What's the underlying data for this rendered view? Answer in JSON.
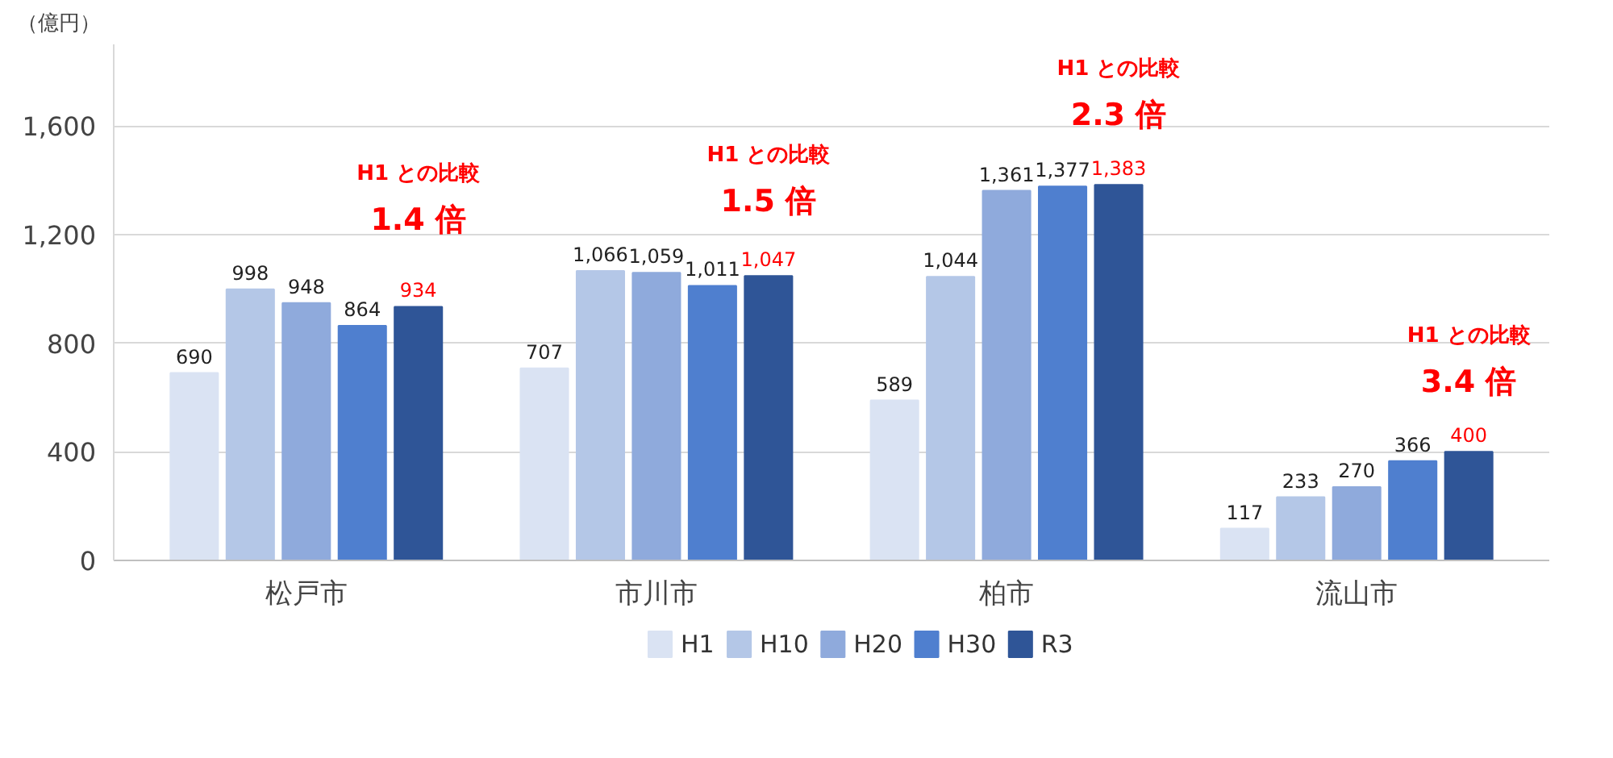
{
  "chart_data": {
    "type": "bar",
    "ylabel": "（億円）",
    "categories": [
      "松戸市",
      "市川市",
      "柏市",
      "流山市"
    ],
    "series": [
      {
        "name": "H1",
        "color": "#dae3f3",
        "values": [
          690,
          707,
          589,
          117
        ],
        "value_labels": [
          "690",
          "707",
          "589",
          "117"
        ]
      },
      {
        "name": "H10",
        "color": "#b4c7e7",
        "values": [
          998,
          1066,
          1044,
          233
        ],
        "value_labels": [
          "998",
          "1,066",
          "1,044",
          "233"
        ]
      },
      {
        "name": "H20",
        "color": "#8faadc",
        "values": [
          948,
          1059,
          1361,
          270
        ],
        "value_labels": [
          "948",
          "1,059",
          "1,361",
          "270"
        ]
      },
      {
        "name": "H30",
        "color": "#4f7fcf",
        "values": [
          864,
          1011,
          1377,
          366
        ],
        "value_labels": [
          "864",
          "1,011",
          "1,377",
          "366"
        ]
      },
      {
        "name": "R3",
        "color": "#2f5597",
        "values": [
          934,
          1047,
          1383,
          400
        ],
        "value_labels": [
          "934",
          "1,047",
          "1,383",
          "400"
        ]
      }
    ],
    "ylim": [
      0,
      1900
    ],
    "yticks": [
      0,
      400,
      800,
      {
        "value": 1200,
        "label": "1,200"
      },
      {
        "value": 1600,
        "label": "1,600"
      }
    ],
    "grid": "y",
    "legend": "bottom",
    "annotations": [
      "H1 との比較",
      "1.4 倍",
      "H1 との比較",
      "1.5 倍",
      "H1 との比較",
      "2.3 倍",
      "H1 との比較",
      "3.4 倍"
    ]
  }
}
